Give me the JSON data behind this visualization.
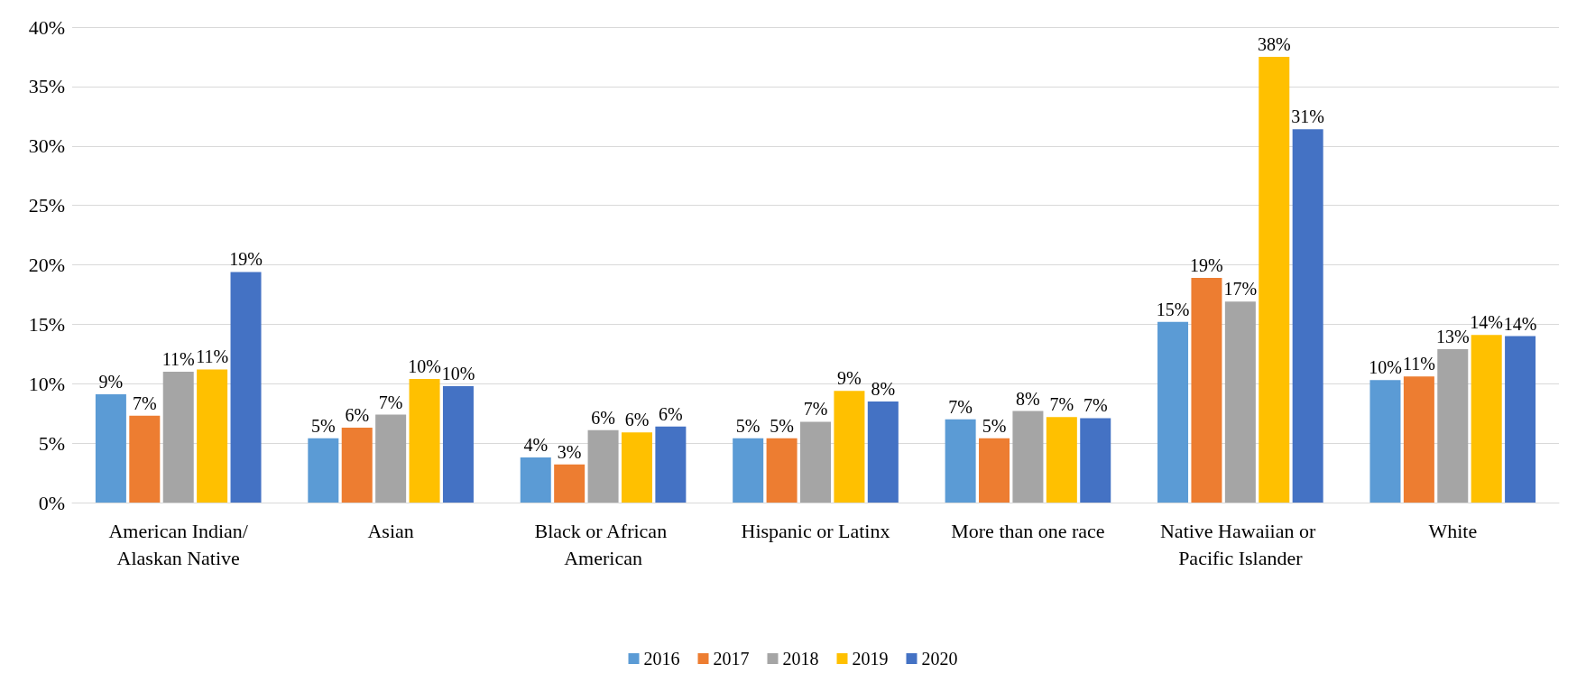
{
  "chart_data": {
    "type": "bar",
    "categories": [
      "American Indian/Alaskan Native",
      "Asian",
      "Black or African American",
      "Hispanic or Latinx",
      "More than one race",
      "Native Hawaiian or Pacific Islander",
      "White"
    ],
    "series": [
      {
        "name": "2016",
        "color": "#5b9bd5",
        "values": [
          9.1,
          5.4,
          3.8,
          5.4,
          7.0,
          15.2,
          10.3
        ],
        "value_labels": [
          "9%",
          "5%",
          "4%",
          "5%",
          "7%",
          "15%",
          "10%"
        ]
      },
      {
        "name": "2017",
        "color": "#ed7d31",
        "values": [
          7.3,
          6.3,
          3.2,
          5.4,
          5.4,
          18.9,
          10.6
        ],
        "value_labels": [
          "7%",
          "6%",
          "3%",
          "5%",
          "5%",
          "19%",
          "11%"
        ]
      },
      {
        "name": "2018",
        "color": "#a5a5a5",
        "values": [
          11.0,
          7.4,
          6.1,
          6.8,
          7.7,
          16.9,
          12.9
        ],
        "value_labels": [
          "11%",
          "7%",
          "6%",
          "7%",
          "8%",
          "17%",
          "13%"
        ]
      },
      {
        "name": "2019",
        "color": "#ffc000",
        "values": [
          11.2,
          10.4,
          5.9,
          9.4,
          7.2,
          37.5,
          14.1
        ],
        "value_labels": [
          "11%",
          "10%",
          "6%",
          "9%",
          "7%",
          "38%",
          "14%"
        ]
      },
      {
        "name": "2020",
        "color": "#4472c4",
        "values": [
          19.4,
          9.8,
          6.4,
          8.5,
          7.1,
          31.4,
          14.0
        ],
        "value_labels": [
          "19%",
          "10%",
          "6%",
          "8%",
          "7%",
          "31%",
          "14%"
        ]
      }
    ],
    "ylim": [
      0,
      40
    ],
    "yticks": [
      {
        "value": 0,
        "label": "0%"
      },
      {
        "value": 5,
        "label": "5%"
      },
      {
        "value": 10,
        "label": "10%"
      },
      {
        "value": 15,
        "label": "15%"
      },
      {
        "value": 20,
        "label": "20%"
      },
      {
        "value": 25,
        "label": "25%"
      },
      {
        "value": 30,
        "label": "30%"
      },
      {
        "value": 35,
        "label": "35%"
      },
      {
        "value": 40,
        "label": "40%"
      }
    ],
    "grid": "y",
    "legend": "bottom"
  }
}
